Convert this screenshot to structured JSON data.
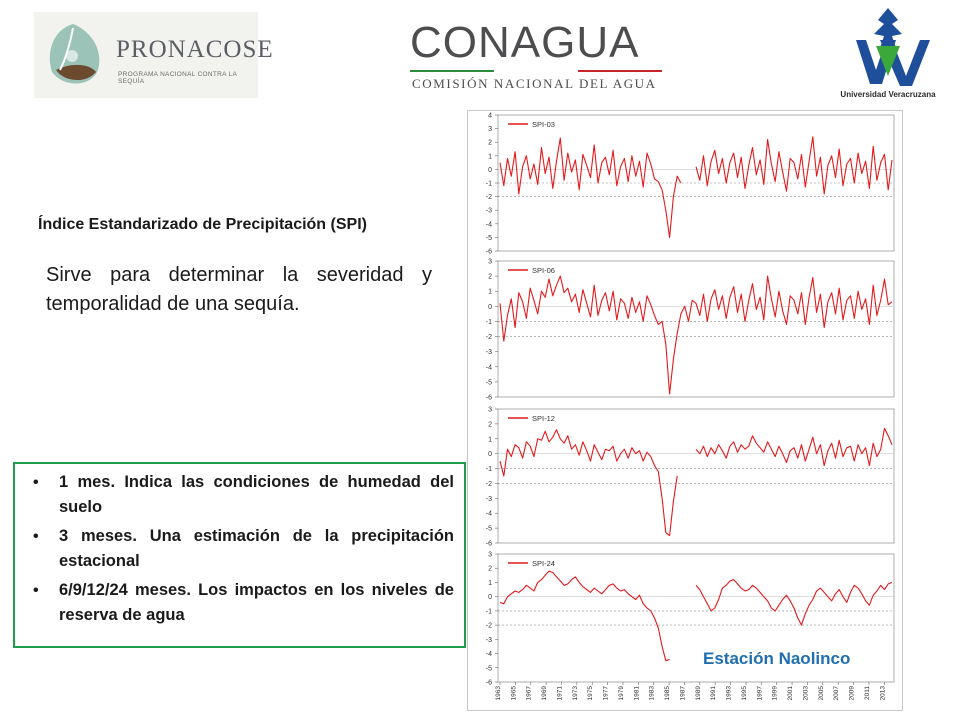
{
  "logos": {
    "pronacose": {
      "name": "PRONACOSE",
      "subtitle": "PROGRAMA NACIONAL CONTRA LA SEQUÍA"
    },
    "conagua": {
      "name": "CONAGUA",
      "subtitle": "COMISIÓN NACIONAL DEL AGUA"
    },
    "university": {
      "name": "Universidad Veracruzana"
    }
  },
  "heading": "Índice Estandarizado de Precipitación (SPI)",
  "description": "Sirve para determinar la severidad y temporalidad de una sequía.",
  "bullets": [
    "1 mes. Indica las condiciones de humedad del suelo",
    "3 meses. Una estimación de la precipitación estacional",
    "6/9/12/24 meses. Los impactos en los niveles de reserva de agua"
  ],
  "station_label": "Estación Naolinco",
  "colors": {
    "series": "#e31a1c",
    "box_border": "#1e9e4a",
    "station_text": "#1f6fb0"
  },
  "chart_data": [
    {
      "type": "line",
      "series": [
        {
          "name": "SPI-03",
          "values": [
            0.5,
            -1.2,
            0.8,
            -0.5,
            1.3,
            -1.8,
            0.2,
            1.0,
            -0.7,
            0.4,
            -1.1,
            1.6,
            -0.3,
            0.9,
            -1.4,
            0.6,
            2.3,
            -0.8,
            1.2,
            -0.2,
            0.7,
            -1.5,
            1.1,
            0.3,
            -0.6,
            1.8,
            -1.0,
            0.5,
            0.9,
            -0.4,
            1.4,
            -1.2,
            0.2,
            0.8,
            -0.9,
            1.0,
            -0.5,
            0.6,
            -1.3,
            1.2,
            0.4,
            -0.7,
            -0.9,
            -1.5,
            -3.0,
            -5.0,
            -2.0,
            -0.5,
            -1.0,
            null,
            null,
            null,
            0.2,
            -0.8,
            1.0,
            -1.2,
            0.6,
            1.4,
            -0.3,
            0.8,
            -1.0,
            0.5,
            1.2,
            -0.6,
            0.9,
            -1.4,
            0.3,
            1.6,
            -0.4,
            0.7,
            -1.1,
            2.2,
            0.4,
            -0.9,
            1.3,
            -0.2,
            -1.6,
            0.8,
            0.5,
            -0.7,
            1.1,
            -1.3,
            0.6,
            2.4,
            -0.5,
            0.9,
            -1.8,
            0.3,
            1.0,
            -0.6,
            1.5,
            -1.2,
            0.4,
            0.8,
            -1.0,
            1.2,
            -0.3,
            0.6,
            -1.4,
            1.7,
            -0.8,
            0.5,
            1.1,
            -1.5,
            0.7
          ]
        },
        {
          "name": "",
          "values": []
        }
      ],
      "x": {
        "start_year": 1963,
        "end_year": 2014
      },
      "ylim": [
        -6,
        4
      ],
      "yticks": [
        4,
        3,
        2,
        1,
        0,
        -1,
        -2,
        -3,
        -4,
        -5,
        -6
      ],
      "grid": "dashed at -1, -2"
    },
    {
      "type": "line",
      "series": [
        {
          "name": "SPI-06",
          "values": [
            0.2,
            -2.3,
            -0.6,
            0.5,
            -1.4,
            0.9,
            0.3,
            -0.8,
            1.2,
            0.4,
            -0.5,
            1.0,
            0.6,
            1.8,
            0.7,
            1.4,
            2.0,
            0.9,
            1.2,
            0.3,
            0.8,
            -0.4,
            1.1,
            0.2,
            -0.7,
            1.4,
            -0.6,
            0.4,
            0.9,
            -0.3,
            1.0,
            -0.9,
            0.5,
            0.2,
            -0.8,
            0.6,
            -0.4,
            0.3,
            -1.0,
            0.7,
            0.1,
            -0.6,
            -1.2,
            -1.0,
            -2.5,
            -5.8,
            -3.5,
            -1.8,
            -0.5,
            0.0,
            -1.0,
            0.4,
            0.2,
            -0.6,
            0.8,
            -1.0,
            0.5,
            1.1,
            -0.2,
            0.7,
            -0.8,
            0.6,
            1.3,
            -0.4,
            0.8,
            -1.0,
            0.4,
            1.5,
            -0.2,
            0.6,
            -0.9,
            2.0,
            0.5,
            -0.7,
            1.0,
            -0.3,
            -1.2,
            0.7,
            0.4,
            -0.5,
            0.9,
            -1.2,
            0.6,
            1.9,
            -0.4,
            0.8,
            -1.4,
            0.3,
            0.9,
            -0.5,
            1.2,
            -0.9,
            0.4,
            0.7,
            -0.8,
            1.0,
            -0.2,
            0.5,
            -1.2,
            1.4,
            -0.6,
            0.4,
            1.8,
            0.1,
            0.3
          ]
        }
      ],
      "x": {
        "start_year": 1963,
        "end_year": 2014
      },
      "ylim": [
        -6,
        3
      ],
      "yticks": [
        3,
        2,
        1,
        0,
        -1,
        -2,
        -3,
        -4,
        -5,
        -6
      ]
    },
    {
      "type": "line",
      "series": [
        {
          "name": "SPI-12",
          "values": [
            -0.5,
            -1.5,
            0.3,
            -0.2,
            0.6,
            0.4,
            -0.3,
            0.8,
            0.5,
            -0.2,
            1.0,
            0.9,
            1.5,
            0.8,
            1.1,
            1.6,
            1.0,
            0.7,
            1.2,
            0.3,
            0.6,
            -0.1,
            0.8,
            0.2,
            -0.5,
            0.6,
            0.1,
            -0.4,
            0.3,
            0.2,
            0.5,
            -0.5,
            0.0,
            0.3,
            -0.3,
            0.4,
            0.0,
            0.2,
            -0.5,
            0.1,
            -0.2,
            -0.8,
            -1.2,
            -3.0,
            -5.3,
            -5.5,
            -3.2,
            -1.5,
            null,
            null,
            null,
            null,
            0.3,
            0.0,
            0.5,
            -0.2,
            0.4,
            0.0,
            0.6,
            0.2,
            -0.3,
            0.5,
            0.8,
            0.1,
            0.6,
            0.3,
            0.5,
            1.2,
            0.7,
            0.4,
            0.1,
            0.8,
            0.3,
            -0.2,
            0.5,
            0.0,
            -0.6,
            0.2,
            0.4,
            -0.3,
            0.6,
            -0.5,
            0.3,
            1.1,
            0.0,
            0.6,
            -0.8,
            0.2,
            0.7,
            -0.3,
            0.9,
            -0.2,
            0.4,
            0.5,
            -0.5,
            0.6,
            0.0,
            0.4,
            -0.8,
            0.7,
            -0.2,
            0.3,
            1.7,
            1.2,
            0.6
          ]
        }
      ],
      "x": {
        "start_year": 1963,
        "end_year": 2014
      },
      "ylim": [
        -6,
        3
      ],
      "yticks": [
        3,
        2,
        1,
        0,
        -1,
        -2,
        -3,
        -4,
        -5,
        -6
      ]
    },
    {
      "type": "line",
      "series": [
        {
          "name": "SPI-24",
          "values": [
            -0.4,
            -0.5,
            0.0,
            0.2,
            0.4,
            0.3,
            0.5,
            0.8,
            0.6,
            0.4,
            1.0,
            1.2,
            1.5,
            1.8,
            1.7,
            1.4,
            1.1,
            0.8,
            0.9,
            1.2,
            1.4,
            1.0,
            0.7,
            0.5,
            0.3,
            0.6,
            0.4,
            0.2,
            0.5,
            0.8,
            0.9,
            0.6,
            0.4,
            0.5,
            0.2,
            0.0,
            -0.2,
            0.1,
            -0.5,
            -0.8,
            -1.0,
            -1.5,
            -2.2,
            -3.5,
            -4.5,
            -4.4,
            null,
            null,
            null,
            null,
            null,
            null,
            0.8,
            0.5,
            0.0,
            -0.5,
            -1.0,
            -0.8,
            -0.2,
            0.6,
            0.8,
            1.1,
            1.2,
            0.9,
            0.6,
            0.4,
            0.5,
            0.8,
            0.6,
            0.3,
            0.0,
            -0.3,
            -0.8,
            -1.0,
            -0.6,
            -0.2,
            0.1,
            -0.3,
            -0.8,
            -1.5,
            -2.0,
            -1.2,
            -0.6,
            -0.2,
            0.4,
            0.6,
            0.3,
            0.0,
            -0.3,
            0.2,
            0.5,
            0.0,
            -0.4,
            0.3,
            0.8,
            0.6,
            0.2,
            -0.3,
            -0.6,
            0.1,
            0.4,
            0.8,
            0.5,
            0.9,
            1.0
          ]
        }
      ],
      "x": {
        "start_year": 1963,
        "end_year": 2014
      },
      "ylim": [
        -6,
        3
      ],
      "yticks": [
        3,
        2,
        1,
        0,
        -1,
        -2,
        -3,
        -4,
        -5,
        -6
      ],
      "xticks": [
        "1963",
        "1965",
        "1967",
        "1969",
        "1971",
        "1973",
        "1975",
        "1977",
        "1979",
        "1981",
        "1983",
        "1985",
        "1987",
        "1989",
        "1991",
        "1993",
        "1995",
        "1997",
        "1999",
        "2001",
        "2003",
        "2005",
        "2007",
        "2009",
        "2011",
        "2013"
      ]
    }
  ]
}
